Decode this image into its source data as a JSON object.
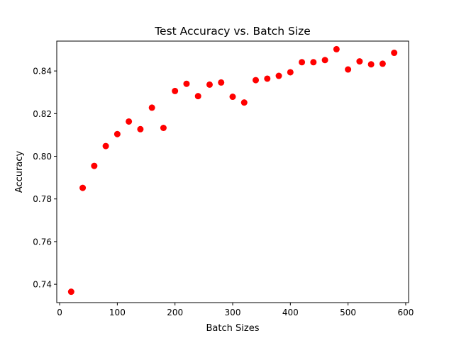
{
  "chart_data": {
    "type": "scatter",
    "title": "Test Accuracy vs. Batch Size",
    "xlabel": "Batch Sizes",
    "ylabel": "Accuracy",
    "xlim": [
      -5,
      605
    ],
    "ylim": [
      0.7314,
      0.854
    ],
    "xticks": [
      0,
      100,
      200,
      300,
      400,
      500,
      600
    ],
    "yticks": [
      0.74,
      0.76,
      0.78,
      0.8,
      0.82,
      0.84
    ],
    "xtick_labels": [
      "0",
      "100",
      "200",
      "300",
      "400",
      "500",
      "600"
    ],
    "ytick_labels": [
      "0.74",
      "0.76",
      "0.78",
      "0.80",
      "0.82",
      "0.84"
    ],
    "grid": false,
    "marker_color": "#ff0000",
    "series": [
      {
        "points": [
          {
            "x": 20,
            "y": 0.7365
          },
          {
            "x": 40,
            "y": 0.7852
          },
          {
            "x": 60,
            "y": 0.7955
          },
          {
            "x": 80,
            "y": 0.8048
          },
          {
            "x": 100,
            "y": 0.8104
          },
          {
            "x": 120,
            "y": 0.8163
          },
          {
            "x": 140,
            "y": 0.8127
          },
          {
            "x": 160,
            "y": 0.8228
          },
          {
            "x": 180,
            "y": 0.8133
          },
          {
            "x": 200,
            "y": 0.8306
          },
          {
            "x": 220,
            "y": 0.834
          },
          {
            "x": 240,
            "y": 0.8282
          },
          {
            "x": 260,
            "y": 0.8336
          },
          {
            "x": 280,
            "y": 0.8346
          },
          {
            "x": 300,
            "y": 0.8279
          },
          {
            "x": 320,
            "y": 0.8252
          },
          {
            "x": 340,
            "y": 0.8357
          },
          {
            "x": 360,
            "y": 0.8364
          },
          {
            "x": 380,
            "y": 0.8377
          },
          {
            "x": 400,
            "y": 0.8394
          },
          {
            "x": 420,
            "y": 0.8441
          },
          {
            "x": 440,
            "y": 0.8441
          },
          {
            "x": 460,
            "y": 0.8451
          },
          {
            "x": 480,
            "y": 0.8502
          },
          {
            "x": 500,
            "y": 0.8407
          },
          {
            "x": 520,
            "y": 0.8445
          },
          {
            "x": 540,
            "y": 0.8431
          },
          {
            "x": 560,
            "y": 0.8434
          },
          {
            "x": 580,
            "y": 0.8485
          }
        ]
      }
    ]
  }
}
